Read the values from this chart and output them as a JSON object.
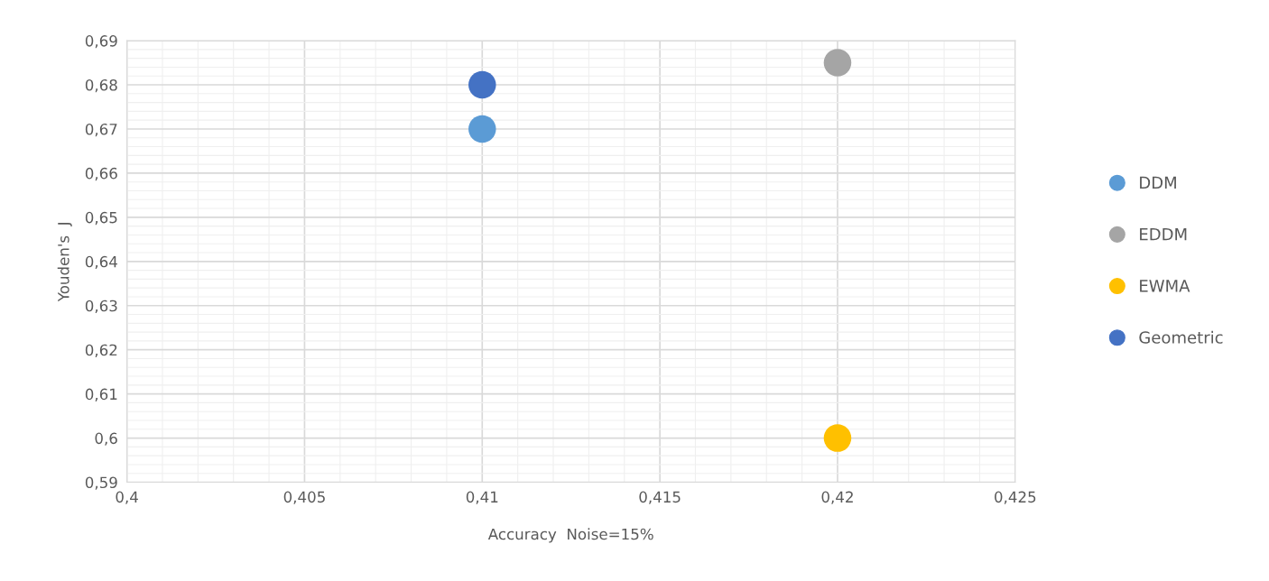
{
  "chart_data": {
    "type": "scatter",
    "xlabel": "Accuracy  Noise=15%",
    "ylabel": "Youden's  J",
    "x": [
      0.41,
      0.42
    ],
    "series": [
      {
        "name": "DDM",
        "color": "#5b9bd5",
        "values": [
          0.67,
          null
        ]
      },
      {
        "name": "EDDM",
        "color": "#a5a5a5",
        "values": [
          null,
          0.685
        ]
      },
      {
        "name": "EWMA",
        "color": "#ffc000",
        "values": [
          null,
          0.6
        ]
      },
      {
        "name": "Geometric",
        "color": "#4472c4",
        "values": [
          0.68,
          null
        ]
      }
    ],
    "xlim": [
      0.4,
      0.425
    ],
    "xticks": [
      {
        "value": 0.4,
        "label": "0,4"
      },
      {
        "value": 0.405,
        "label": "0,405"
      },
      {
        "value": 0.41,
        "label": "0,41"
      },
      {
        "value": 0.415,
        "label": "0,415"
      },
      {
        "value": 0.42,
        "label": "0,42"
      },
      {
        "value": 0.425,
        "label": "0,425"
      }
    ],
    "ylim": [
      0.59,
      0.69
    ],
    "yticks": [
      {
        "value": 0.59,
        "label": "0,59"
      },
      {
        "value": 0.6,
        "label": "0,6"
      },
      {
        "value": 0.61,
        "label": "0,61"
      },
      {
        "value": 0.62,
        "label": "0,62"
      },
      {
        "value": 0.63,
        "label": "0,63"
      },
      {
        "value": 0.64,
        "label": "0,64"
      },
      {
        "value": 0.65,
        "label": "0,65"
      },
      {
        "value": 0.66,
        "label": "0,66"
      },
      {
        "value": 0.67,
        "label": "0,67"
      },
      {
        "value": 0.68,
        "label": "0,68"
      },
      {
        "value": 0.69,
        "label": "0,69"
      }
    ],
    "grid": true,
    "legend": "right",
    "marker": "circle"
  }
}
